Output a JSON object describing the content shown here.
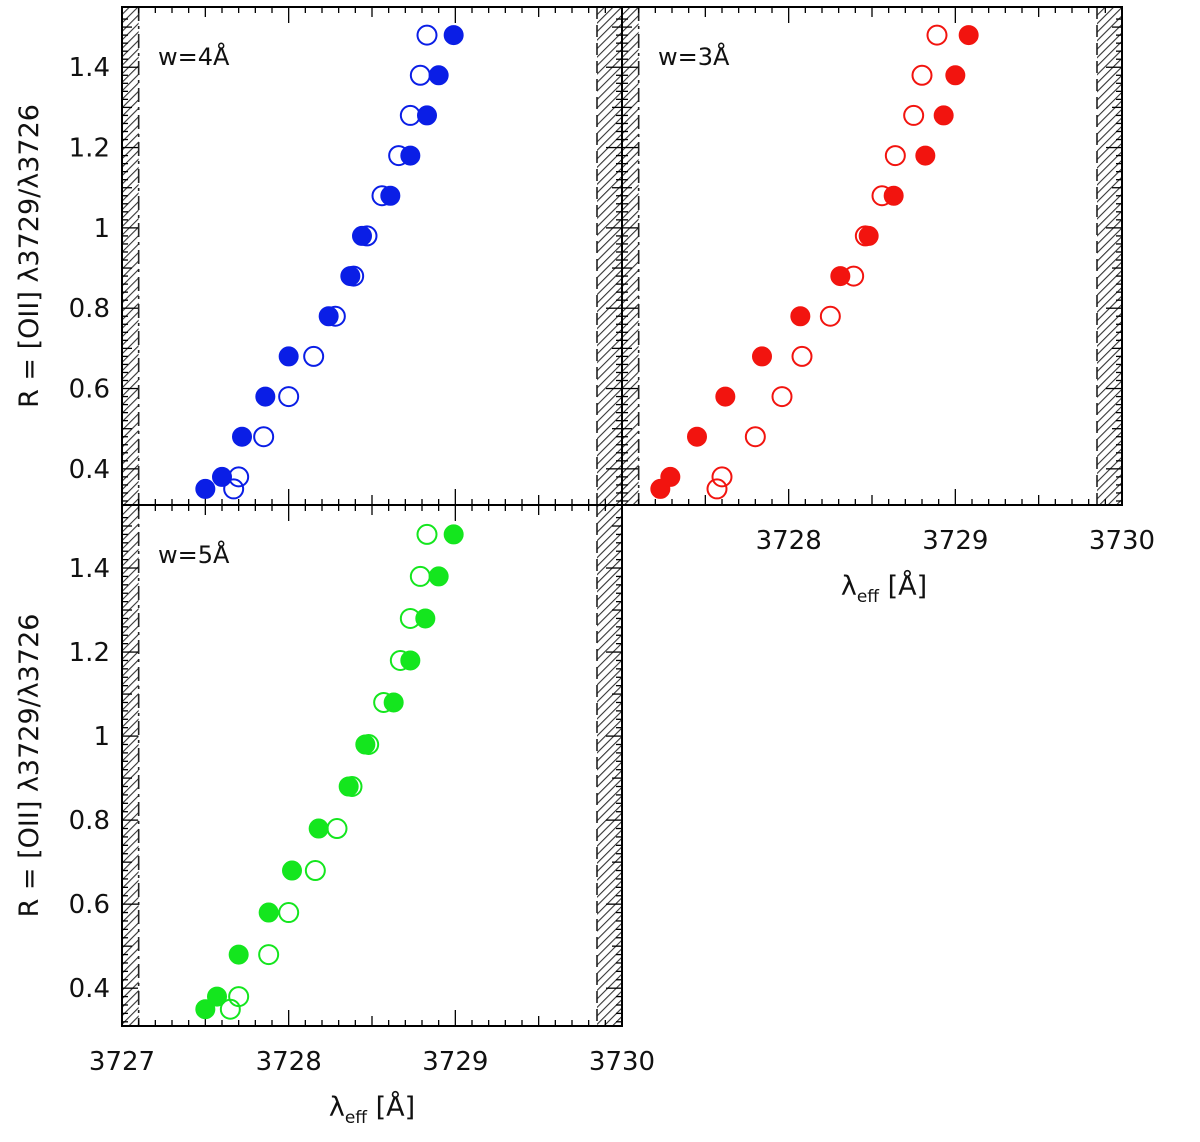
{
  "chart_data": [
    {
      "type": "scatter",
      "panel_label": "w=4Å",
      "color": "#0a1ee6",
      "xlim": [
        3727,
        3730
      ],
      "ylim": [
        0.31,
        1.55
      ],
      "ylabel": "R  =  [OII]  λ3729/λ3726",
      "xlabel": "",
      "yticks": [
        "0.4",
        "0.6",
        "0.8",
        "1",
        "1.2",
        "1.4"
      ],
      "xticks": [],
      "excluded_regions": [
        [
          3727,
          3727.1
        ],
        [
          3729.85,
          3730
        ]
      ],
      "series": [
        {
          "marker": "filled",
          "x": [
            3727.5,
            3727.6,
            3727.72,
            3727.86,
            3728.0,
            3728.24,
            3728.37,
            3728.44,
            3728.61,
            3728.73,
            3728.83,
            3728.9,
            3728.99
          ],
          "y": [
            0.35,
            0.38,
            0.48,
            0.58,
            0.68,
            0.78,
            0.88,
            0.98,
            1.08,
            1.18,
            1.28,
            1.38,
            1.48
          ]
        },
        {
          "marker": "open",
          "x": [
            3727.67,
            3727.7,
            3727.85,
            3728.0,
            3728.15,
            3728.28,
            3728.39,
            3728.47,
            3728.56,
            3728.66,
            3728.73,
            3728.79,
            3728.83
          ],
          "y": [
            0.35,
            0.38,
            0.48,
            0.58,
            0.68,
            0.78,
            0.88,
            0.98,
            1.08,
            1.18,
            1.28,
            1.38,
            1.48
          ]
        }
      ]
    },
    {
      "type": "scatter",
      "panel_label": "w=3Å",
      "color": "#f2140f",
      "xlim": [
        3727,
        3730
      ],
      "ylim": [
        0.31,
        1.55
      ],
      "ylabel": "",
      "xlabel": "λeff  [Å]",
      "yticks": [],
      "xticks": [
        "3728",
        "3729",
        "3730"
      ],
      "excluded_regions": [
        [
          3727,
          3727.1
        ],
        [
          3729.85,
          3730
        ]
      ],
      "series": [
        {
          "marker": "filled",
          "x": [
            3727.23,
            3727.29,
            3727.45,
            3727.62,
            3727.84,
            3728.07,
            3728.31,
            3728.48,
            3728.63,
            3728.82,
            3728.93,
            3729.0,
            3729.08
          ],
          "y": [
            0.35,
            0.38,
            0.48,
            0.58,
            0.68,
            0.78,
            0.88,
            0.98,
            1.08,
            1.18,
            1.28,
            1.38,
            1.48
          ]
        },
        {
          "marker": "open",
          "x": [
            3727.57,
            3727.6,
            3727.8,
            3727.96,
            3728.08,
            3728.25,
            3728.39,
            3728.46,
            3728.56,
            3728.64,
            3728.75,
            3728.8,
            3728.89
          ],
          "y": [
            0.35,
            0.38,
            0.48,
            0.58,
            0.68,
            0.78,
            0.88,
            0.98,
            1.08,
            1.18,
            1.28,
            1.38,
            1.48
          ]
        }
      ]
    },
    {
      "type": "scatter",
      "panel_label": "w=5Å",
      "color": "#14e61e",
      "xlim": [
        3727,
        3730
      ],
      "ylim": [
        0.31,
        1.55
      ],
      "ylabel": "R  =  [OII]  λ3729/λ3726",
      "xlabel": "λeff  [Å]",
      "yticks": [
        "0.4",
        "0.6",
        "0.8",
        "1",
        "1.2",
        "1.4"
      ],
      "xticks": [
        "3727",
        "3728",
        "3729",
        "3730"
      ],
      "excluded_regions": [
        [
          3727,
          3727.1
        ],
        [
          3729.85,
          3730
        ]
      ],
      "series": [
        {
          "marker": "filled",
          "x": [
            3727.5,
            3727.57,
            3727.7,
            3727.88,
            3728.02,
            3728.18,
            3728.36,
            3728.46,
            3728.63,
            3728.73,
            3728.82,
            3728.9,
            3728.99
          ],
          "y": [
            0.35,
            0.38,
            0.48,
            0.58,
            0.68,
            0.78,
            0.88,
            0.98,
            1.08,
            1.18,
            1.28,
            1.38,
            1.48
          ]
        },
        {
          "marker": "open",
          "x": [
            3727.65,
            3727.7,
            3727.88,
            3728.0,
            3728.16,
            3728.29,
            3728.38,
            3728.48,
            3728.57,
            3728.67,
            3728.73,
            3728.79,
            3728.83
          ],
          "y": [
            0.35,
            0.38,
            0.48,
            0.58,
            0.68,
            0.78,
            0.88,
            0.98,
            1.08,
            1.18,
            1.28,
            1.38,
            1.48
          ]
        }
      ]
    }
  ]
}
